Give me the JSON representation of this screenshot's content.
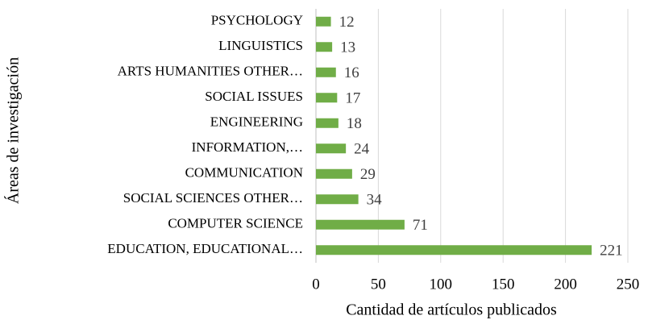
{
  "chart_data": {
    "type": "bar",
    "x_label": "Cantidad de artículos publicados",
    "y_label": "Áreas de investigación",
    "categories": [
      "PSYCHOLOGY",
      "LINGUISTICS",
      "ARTS HUMANITIES OTHER…",
      "SOCIAL ISSUES",
      "ENGINEERING",
      "INFORMATION,…",
      "COMMUNICATION",
      "SOCIAL SCIENCES OTHER…",
      "COMPUTER SCIENCE",
      "EDUCATION, EDUCATIONAL…"
    ],
    "values": [
      12,
      13,
      16,
      17,
      18,
      24,
      29,
      34,
      71,
      221
    ],
    "color": "#70ad47",
    "xlim": [
      0,
      250
    ],
    "xticks": [
      0,
      50,
      100,
      150,
      200,
      250
    ],
    "grid": true
  }
}
